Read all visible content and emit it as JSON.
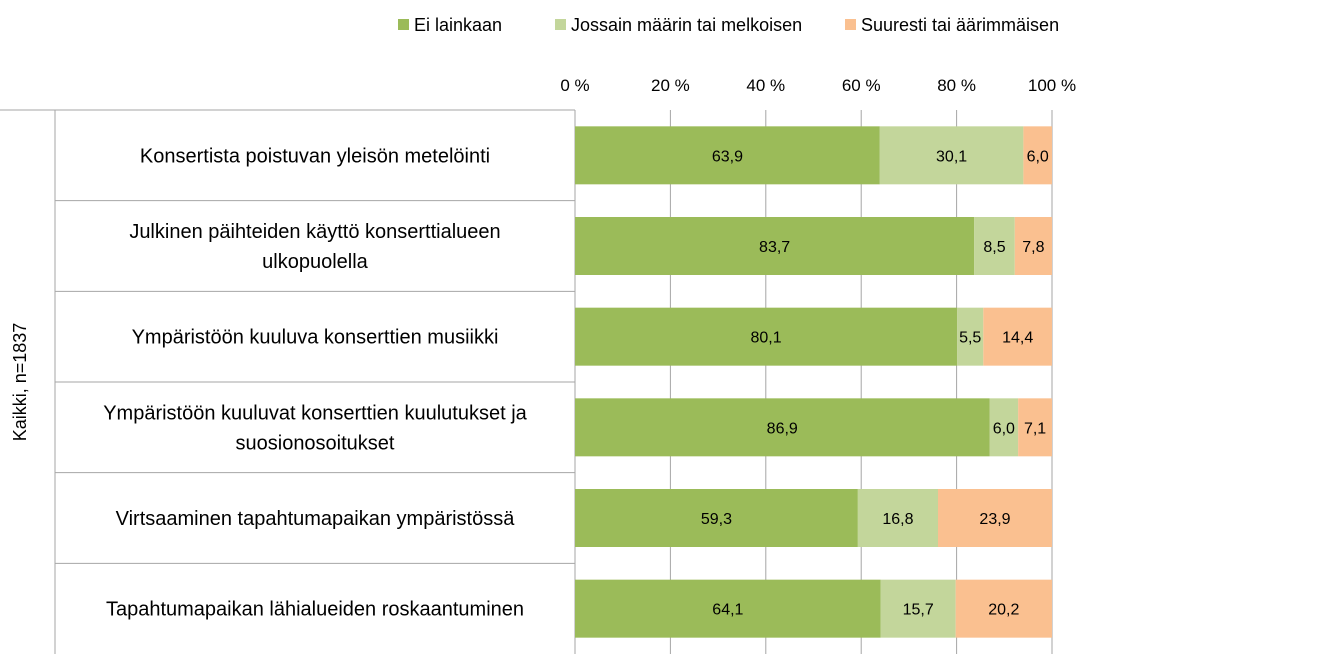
{
  "chart_data": {
    "type": "bar",
    "orientation": "horizontal",
    "stacked": true,
    "percent_axis": true,
    "xlim": [
      0,
      100
    ],
    "x_ticks": [
      0,
      20,
      40,
      60,
      80,
      100
    ],
    "x_tick_labels": [
      "0 %",
      "20 %",
      "40 %",
      "60 %",
      "80 %",
      "100 %"
    ],
    "x_axis_position": "top",
    "grid": true,
    "legend_position": "top",
    "group_label": "Kaikki, n=1837",
    "categories": [
      [
        "Konsertista poistuvan yleisön metelöinti"
      ],
      [
        "Julkinen päihteiden käyttö konserttialueen",
        "ulkopuolella"
      ],
      [
        "Ympäristöön kuuluva konserttien musiikki"
      ],
      [
        "Ympäristöön kuuluvat konserttien kuulutukset ja",
        "suosionosoitukset"
      ],
      [
        "Virtsaaminen tapahtumapaikan ympäristössä"
      ],
      [
        "Tapahtumapaikan lähialueiden roskaantuminen"
      ]
    ],
    "series": [
      {
        "name": "Ei lainkaan",
        "color": "#9BBB59",
        "values": [
          63.9,
          83.7,
          80.1,
          86.9,
          59.3,
          64.1
        ],
        "labels": [
          "63,9",
          "83,7",
          "80,1",
          "86,9",
          "59,3",
          "64,1"
        ]
      },
      {
        "name": "Jossain määrin tai melkoisen",
        "color": "#C3D69B",
        "values": [
          30.1,
          8.5,
          5.5,
          6.0,
          16.8,
          15.7
        ],
        "labels": [
          "30,1",
          "8,5",
          "5,5",
          "6,0",
          "16,8",
          "15,7"
        ]
      },
      {
        "name": "Suuresti tai äärimmäisen",
        "color": "#FAC090",
        "values": [
          6.0,
          7.8,
          14.4,
          7.1,
          23.9,
          20.2
        ],
        "labels": [
          "6,0",
          "7,8",
          "14,4",
          "7,1",
          "23,9",
          "20,2"
        ]
      }
    ]
  }
}
